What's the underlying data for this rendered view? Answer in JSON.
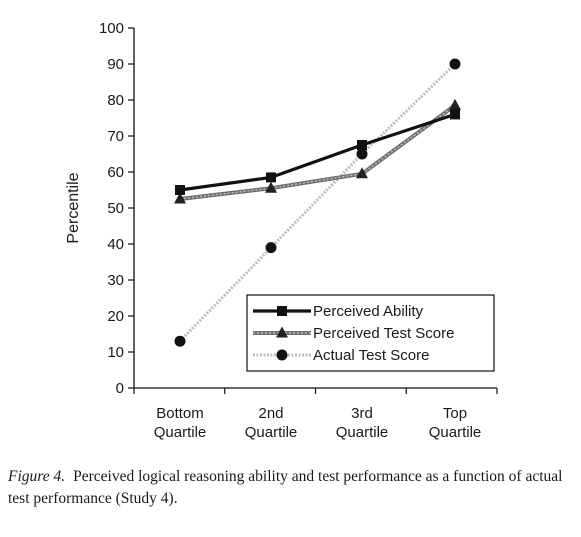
{
  "caption": {
    "label": "Figure 4.",
    "text": "Perceived logical reasoning ability and test performance as a function of actual test performance (Study 4)."
  },
  "chart_data": {
    "type": "line",
    "ylabel": "Percentile",
    "xlabel": "",
    "ylim": [
      0,
      100
    ],
    "yticks": [
      0,
      10,
      20,
      30,
      40,
      50,
      60,
      70,
      80,
      90,
      100
    ],
    "categories": [
      [
        "Bottom",
        "Quartile"
      ],
      [
        "2nd",
        "Quartile"
      ],
      [
        "3rd",
        "Quartile"
      ],
      [
        "Top",
        "Quartile"
      ]
    ],
    "grid": false,
    "legend_position": "bottom-right",
    "series": [
      {
        "name": "Perceived Ability",
        "values": [
          55,
          58.5,
          67.5,
          76
        ],
        "marker": "square",
        "color": "#111111",
        "style": "solid-thick"
      },
      {
        "name": "Perceived Test Score",
        "values": [
          52.5,
          55.5,
          59.5,
          78.5
        ],
        "marker": "triangle",
        "color": "#777777",
        "style": "gray-band"
      },
      {
        "name": "Actual Test Score",
        "values": [
          13,
          39,
          65,
          90
        ],
        "marker": "circle",
        "color": "#b5b5b5",
        "style": "dotted"
      }
    ]
  }
}
